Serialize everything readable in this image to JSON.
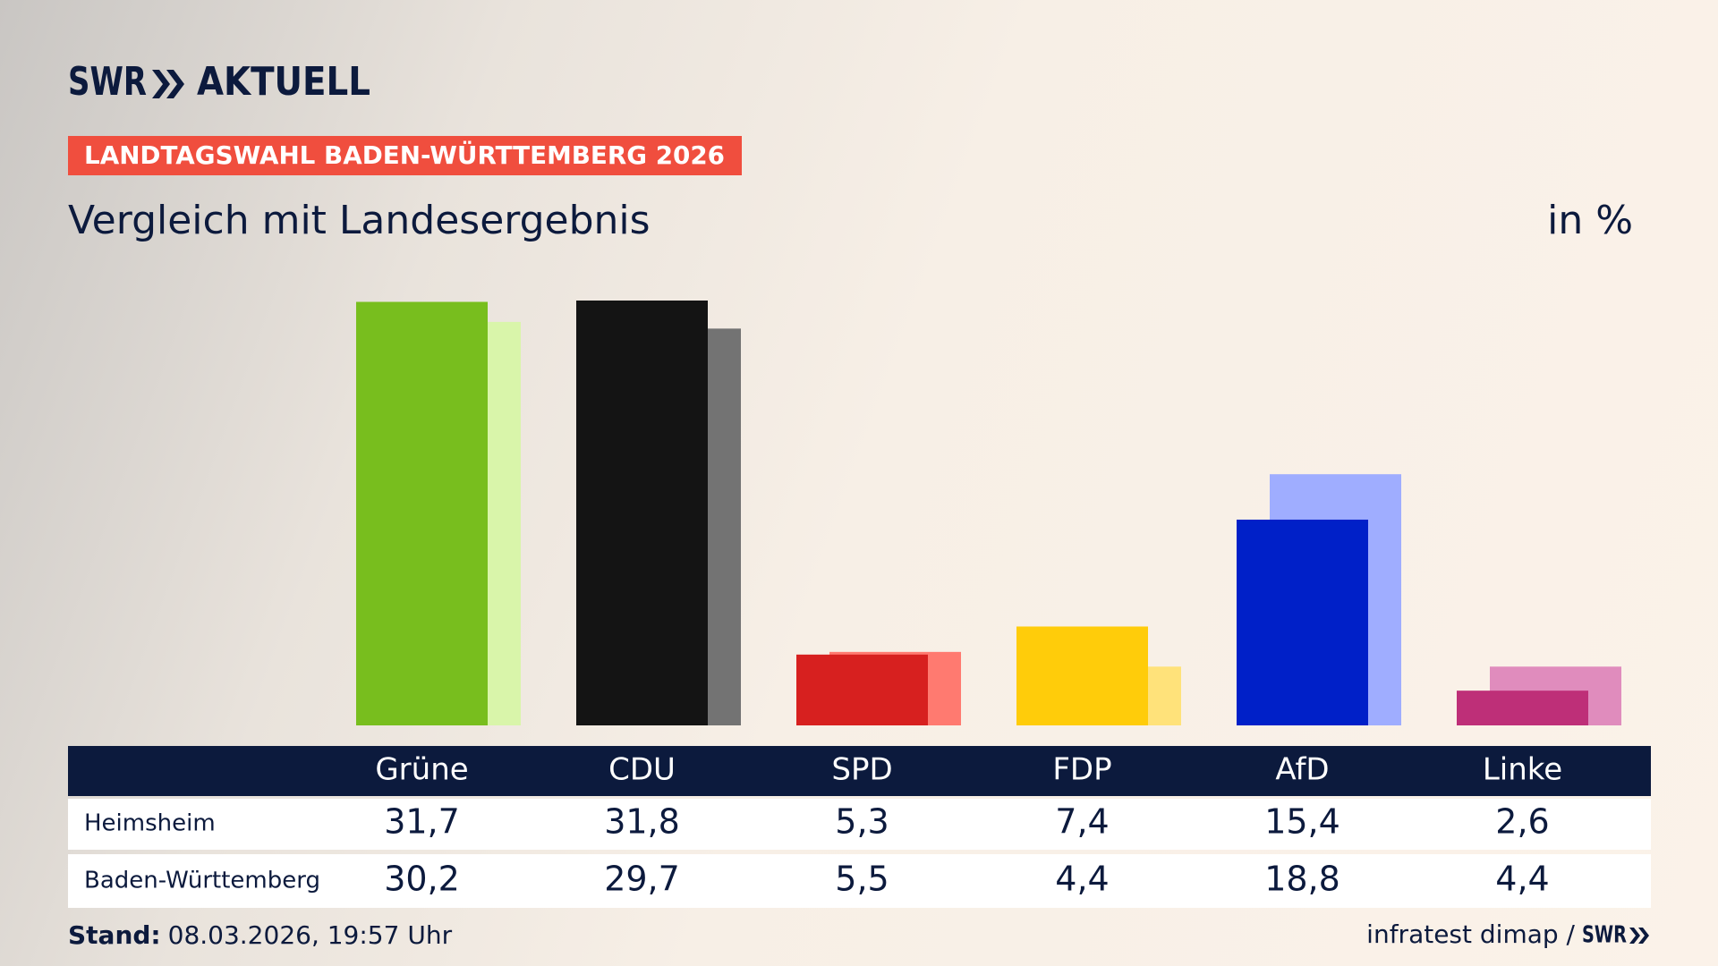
{
  "header": {
    "brand": "SWR",
    "section": "AKTUELL",
    "banner": "LANDTAGSWAHL BADEN-WÜRTTEMBERG 2026"
  },
  "chart_data": {
    "type": "bar",
    "subtitle": "Vergleich mit Landesergebnis",
    "unit_label": "in %",
    "categories": [
      "Grüne",
      "CDU",
      "SPD",
      "FDP",
      "AfD",
      "Linke"
    ],
    "series": [
      {
        "name": "Heimsheim",
        "colors": [
          "#78be1e",
          "#141414",
          "#d7201f",
          "#ffcc0a",
          "#0020c8",
          "#be2f78"
        ],
        "values": [
          31.7,
          31.8,
          5.3,
          7.4,
          15.4,
          2.6
        ],
        "value_labels": [
          "31,7",
          "31,8",
          "5,3",
          "7,4",
          "15,4",
          "2,6"
        ]
      },
      {
        "name": "Baden-Württemberg",
        "colors": [
          "#d9f5aa",
          "#737373",
          "#ff7a70",
          "#ffe27a",
          "#9fadff",
          "#e08cbd"
        ],
        "values": [
          30.2,
          29.7,
          5.5,
          4.4,
          18.8,
          4.4
        ],
        "value_labels": [
          "30,2",
          "29,7",
          "5,5",
          "4,4",
          "18,8",
          "4,4"
        ]
      }
    ]
  },
  "footer": {
    "stand_label": "Stand:",
    "timestamp": "08.03.2026, 19:57 Uhr",
    "source": "infratest dimap /",
    "source_brand": "SWR"
  }
}
